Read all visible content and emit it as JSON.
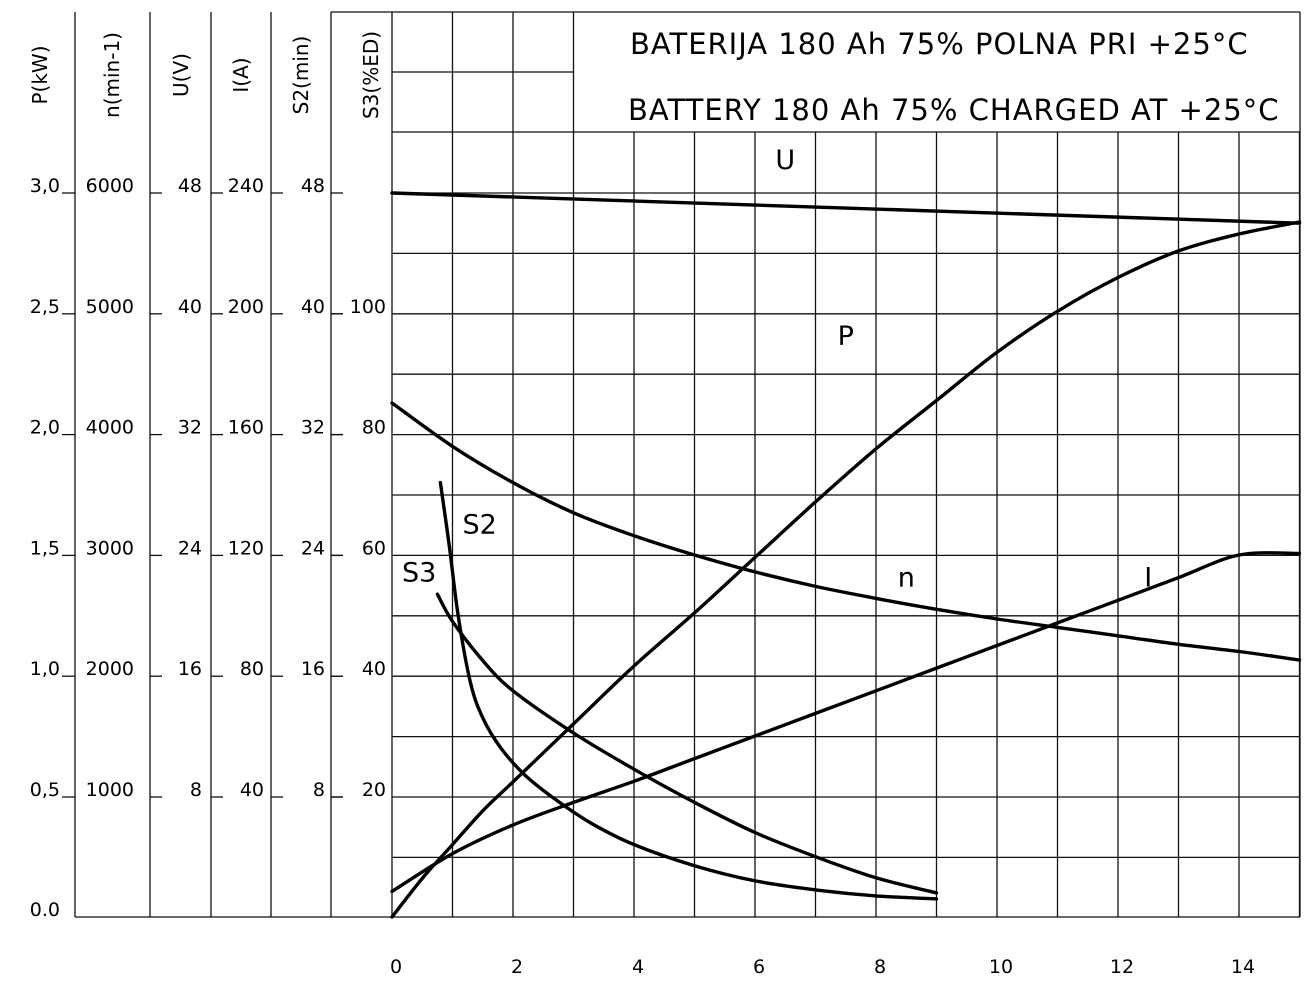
{
  "chart_data": {
    "type": "line",
    "title": [
      "BATERIJA 180 Ah 75% POLNA PRI +25°C",
      "BATTERY 180 Ah 75% CHARGED AT +25°C"
    ],
    "x_ticks": [
      "0",
      "2",
      "4",
      "6",
      "8",
      "10",
      "12",
      "14"
    ],
    "xlim": [
      0,
      15
    ],
    "scales": [
      {
        "label": "P(kW)",
        "ticks": [
          "3,0",
          "2,5",
          "2,0",
          "1,5",
          "1,0",
          "0,5",
          "0.0"
        ]
      },
      {
        "label": "n(min-1)",
        "ticks": [
          "6000",
          "5000",
          "4000",
          "3000",
          "2000",
          "1000"
        ]
      },
      {
        "label": "U(V)",
        "ticks": [
          "48",
          "40",
          "32",
          "24",
          "16",
          "8"
        ]
      },
      {
        "label": "I(A)",
        "ticks": [
          "240",
          "200",
          "160",
          "120",
          "80",
          "40"
        ]
      },
      {
        "label": "S2(min)",
        "ticks": [
          "48",
          "40",
          "32",
          "24",
          "16",
          "8"
        ]
      },
      {
        "label": "S3(%ED)",
        "ticks": [
          "100",
          "80",
          "60",
          "40",
          "20"
        ]
      }
    ],
    "y_range_P_kW": [
      0,
      3.0
    ],
    "series": [
      {
        "name": "U",
        "unit": "V",
        "x": [
          0,
          15
        ],
        "y": [
          48,
          46.0
        ]
      },
      {
        "name": "P",
        "unit": "kW",
        "x": [
          0,
          0.5,
          1,
          1.5,
          2,
          3,
          4,
          5,
          6,
          7,
          8,
          9,
          10,
          11,
          12,
          13,
          14,
          15
        ],
        "y": [
          0,
          0.16,
          0.3,
          0.44,
          0.56,
          0.8,
          1.04,
          1.26,
          1.49,
          1.72,
          1.94,
          2.14,
          2.34,
          2.51,
          2.65,
          2.76,
          2.83,
          2.88
        ]
      },
      {
        "name": "n",
        "unit": "min-1",
        "x": [
          0,
          1,
          2,
          3,
          4,
          5,
          6,
          7,
          8,
          9,
          10,
          11,
          12,
          13,
          14,
          15
        ],
        "y": [
          4260,
          3900,
          3600,
          3350,
          3160,
          3000,
          2860,
          2740,
          2640,
          2550,
          2470,
          2400,
          2330,
          2260,
          2200,
          2130
        ]
      },
      {
        "name": "I",
        "unit": "A",
        "x": [
          0,
          1,
          2,
          3,
          4,
          5,
          6,
          7,
          8,
          9,
          10,
          11,
          12,
          13,
          14,
          15
        ],
        "y": [
          8.5,
          21,
          30.5,
          38,
          45,
          52.5,
          60,
          67.5,
          75,
          82.5,
          90,
          97.5,
          105,
          112.5,
          120,
          120.5
        ]
      },
      {
        "name": "S2",
        "unit": "min",
        "x": [
          0.8,
          0.95,
          1.1,
          1.3,
          1.5,
          1.8,
          2.2,
          2.7,
          3.3,
          4,
          5,
          6,
          7,
          8,
          9
        ],
        "y": [
          28.8,
          24.5,
          19.8,
          15.5,
          13.2,
          11.2,
          9.4,
          7.8,
          6.2,
          4.8,
          3.4,
          2.4,
          1.8,
          1.4,
          1.2
        ]
      },
      {
        "name": "S3",
        "unit": "%ED",
        "x": [
          0.75,
          1,
          1.5,
          2,
          3,
          4,
          5,
          6,
          7,
          8,
          9
        ],
        "y": [
          53.5,
          49,
          42.5,
          37.5,
          30.5,
          24.5,
          19,
          14,
          10,
          6.5,
          4
        ]
      }
    ],
    "curve_labels": [
      {
        "text": "U",
        "x": 6.5,
        "y_kW": 3.1
      },
      {
        "text": "P",
        "x": 7.5,
        "y_kW": 2.37
      },
      {
        "text": "n",
        "x": 8.5,
        "y_kW": 1.37
      },
      {
        "text": "I",
        "x": 12.5,
        "y_kW": 1.37
      },
      {
        "text": "S2",
        "x": 1.45,
        "y_kW": 1.59
      },
      {
        "text": "S3",
        "x": 0.45,
        "y_kW": 1.39
      }
    ],
    "grid": true
  }
}
